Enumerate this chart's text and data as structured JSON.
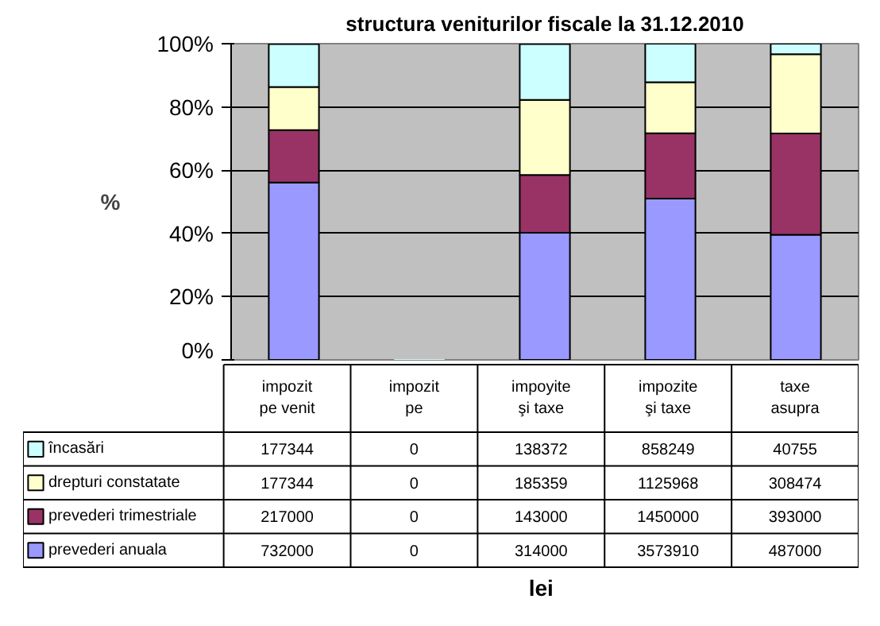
{
  "chart_data": {
    "type": "bar",
    "stacked": true,
    "title": "structura veniturilor fiscale la 31.12.2010",
    "ylabel": "%",
    "categories": [
      "impozit pe venit",
      "impozit pe",
      "impoyite şi taxe",
      "impozite şi taxe",
      "taxe asupra"
    ],
    "series": [
      {
        "name": "prevederi anuala",
        "color": "#9999ff",
        "values": [
          56.1,
          0,
          40.2,
          51.0,
          39.6
        ]
      },
      {
        "name": "prevederi trimestriale",
        "color": "#993366",
        "values": [
          16.6,
          0,
          18.3,
          20.7,
          32.0
        ]
      },
      {
        "name": "drepturi constatate",
        "color": "#ffffcc",
        "values": [
          13.6,
          0,
          23.7,
          16.1,
          25.1
        ]
      },
      {
        "name": "încasări",
        "color": "#ccffff",
        "values": [
          13.6,
          0,
          17.7,
          12.2,
          3.3
        ]
      }
    ],
    "annotations": [
      "732000",
      "0",
      "314000",
      "3573910",
      "487000",
      "217000",
      "0",
      "143000",
      "1450000",
      "393000",
      "177344",
      "0",
      "185359",
      "1125968",
      "308474",
      "177344",
      "0",
      "138372",
      "858249",
      "40755",
      "lei"
    ],
    "ylim": [
      0,
      100
    ],
    "yticks": [
      {
        "value": 0,
        "label": "0%"
      },
      {
        "value": 20,
        "label": "20%"
      },
      {
        "value": 40,
        "label": "40%"
      },
      {
        "value": 60,
        "label": "60%"
      },
      {
        "value": 80,
        "label": "80%"
      },
      {
        "value": 100,
        "label": "100%"
      }
    ],
    "grid": "y",
    "legend": "bottom"
  }
}
